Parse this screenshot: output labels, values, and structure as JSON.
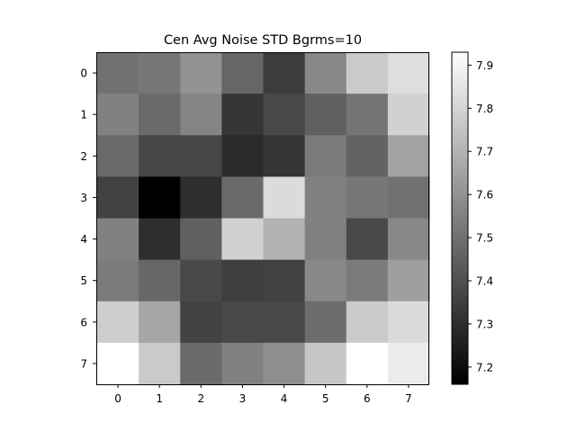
{
  "chart_data": {
    "type": "heatmap",
    "title": "Cen Avg Noise STD Bgrms=10",
    "xlabel": "",
    "ylabel": "",
    "x_ticks": [
      "0",
      "1",
      "2",
      "3",
      "4",
      "5",
      "6",
      "7"
    ],
    "y_ticks": [
      "0",
      "1",
      "2",
      "3",
      "4",
      "5",
      "6",
      "7"
    ],
    "colormap": "gray",
    "vmin": 7.16,
    "vmax": 7.93,
    "colorbar_ticks": [
      "7.2",
      "7.3",
      "7.4",
      "7.5",
      "7.6",
      "7.7",
      "7.8",
      "7.9"
    ],
    "colorbar_tick_values": [
      7.2,
      7.3,
      7.4,
      7.5,
      7.6,
      7.7,
      7.8,
      7.9
    ],
    "values": [
      [
        7.5,
        7.52,
        7.6,
        7.47,
        7.34,
        7.57,
        7.77,
        7.83
      ],
      [
        7.55,
        7.48,
        7.56,
        7.32,
        7.38,
        7.45,
        7.51,
        7.79
      ],
      [
        7.48,
        7.37,
        7.37,
        7.29,
        7.32,
        7.53,
        7.46,
        7.65
      ],
      [
        7.36,
        7.16,
        7.3,
        7.48,
        7.82,
        7.55,
        7.52,
        7.5
      ],
      [
        7.55,
        7.3,
        7.45,
        7.79,
        7.7,
        7.55,
        7.38,
        7.57
      ],
      [
        7.53,
        7.47,
        7.38,
        7.35,
        7.36,
        7.57,
        7.53,
        7.64
      ],
      [
        7.78,
        7.66,
        7.36,
        7.38,
        7.38,
        7.49,
        7.77,
        7.82
      ],
      [
        7.93,
        7.77,
        7.48,
        7.55,
        7.59,
        7.76,
        7.93,
        7.87
      ]
    ]
  }
}
